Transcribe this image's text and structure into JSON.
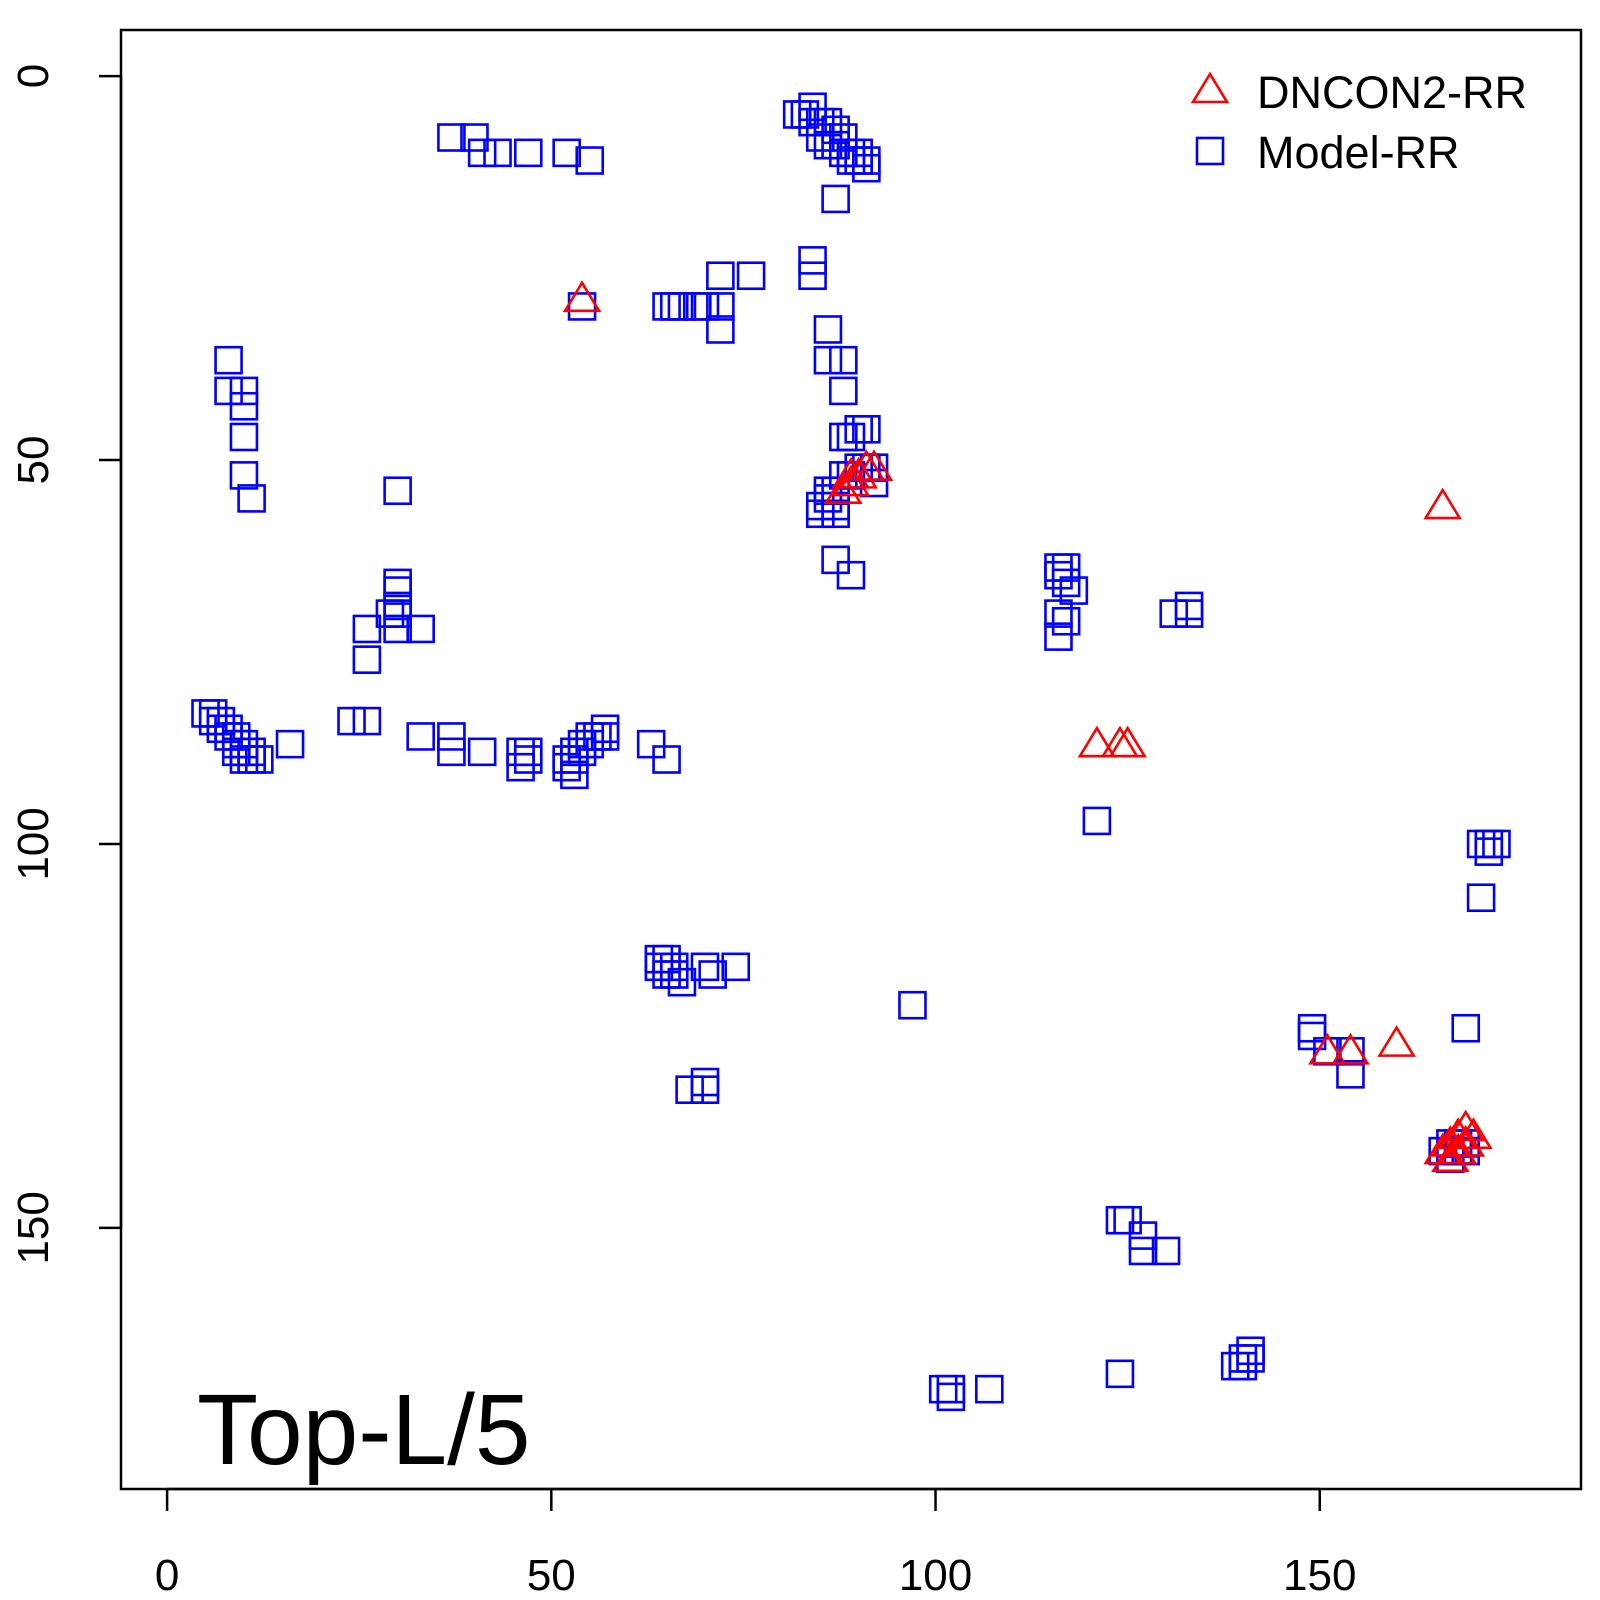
{
  "chart_data": {
    "type": "scatter",
    "title": "",
    "xlabel": "",
    "ylabel": "",
    "xlim": [
      -6,
      184
    ],
    "ylim": [
      184,
      -6
    ],
    "y_inverted": true,
    "x_ticks": [
      0,
      50,
      100,
      150
    ],
    "y_ticks": [
      0,
      50,
      100,
      150
    ],
    "x_tick_labels": [
      "0",
      "50",
      "100",
      "150"
    ],
    "y_tick_labels": [
      "0",
      "50",
      "100",
      "150"
    ],
    "grid": false,
    "legend_position": "top-right",
    "annotation": "Top-L/5",
    "series": [
      {
        "name": "DNCON2-RR",
        "marker": "triangle",
        "color": "#ff0000",
        "points": [
          [
            54,
            29
          ],
          [
            88,
            54
          ],
          [
            89,
            53
          ],
          [
            90,
            52
          ],
          [
            91,
            51
          ],
          [
            92,
            51
          ],
          [
            89,
            52
          ],
          [
            166,
            56
          ],
          [
            121,
            87
          ],
          [
            124,
            87
          ],
          [
            125,
            87
          ],
          [
            151,
            127
          ],
          [
            154,
            127
          ],
          [
            160,
            126
          ],
          [
            166,
            140
          ],
          [
            167,
            139
          ],
          [
            167,
            141
          ],
          [
            168,
            138
          ],
          [
            168,
            140
          ],
          [
            169,
            137
          ],
          [
            169,
            139
          ],
          [
            170,
            138
          ]
        ]
      },
      {
        "name": "Model-RR",
        "marker": "square",
        "color": "#0000ff",
        "points": [
          [
            37,
            8
          ],
          [
            40,
            8
          ],
          [
            41,
            10
          ],
          [
            43,
            10
          ],
          [
            47,
            10
          ],
          [
            52,
            10
          ],
          [
            55,
            11
          ],
          [
            82,
            5
          ],
          [
            83,
            5
          ],
          [
            84,
            4
          ],
          [
            84,
            6
          ],
          [
            85,
            6
          ],
          [
            85,
            8
          ],
          [
            86,
            6
          ],
          [
            86,
            9
          ],
          [
            87,
            7
          ],
          [
            87,
            9
          ],
          [
            88,
            8
          ],
          [
            88,
            10
          ],
          [
            89,
            10
          ],
          [
            89,
            11
          ],
          [
            90,
            10
          ],
          [
            90,
            11
          ],
          [
            91,
            11
          ],
          [
            91,
            12
          ],
          [
            87,
            16
          ],
          [
            84,
            24
          ],
          [
            84,
            26
          ],
          [
            72,
            26
          ],
          [
            76,
            26
          ],
          [
            54,
            30
          ],
          [
            65,
            30
          ],
          [
            66,
            30
          ],
          [
            67,
            30
          ],
          [
            69,
            30
          ],
          [
            70,
            30
          ],
          [
            72,
            30
          ],
          [
            72,
            33
          ],
          [
            86,
            33
          ],
          [
            86,
            37
          ],
          [
            88,
            37
          ],
          [
            88,
            41
          ],
          [
            88,
            47
          ],
          [
            89,
            47
          ],
          [
            90,
            46
          ],
          [
            91,
            46
          ],
          [
            88,
            52
          ],
          [
            89,
            52
          ],
          [
            90,
            51
          ],
          [
            91,
            51
          ],
          [
            92,
            51
          ],
          [
            92,
            53
          ],
          [
            86,
            54
          ],
          [
            86,
            55
          ],
          [
            87,
            54
          ],
          [
            87,
            56
          ],
          [
            85,
            56
          ],
          [
            85,
            57
          ],
          [
            87,
            57
          ],
          [
            87,
            63
          ],
          [
            89,
            65
          ],
          [
            8,
            37
          ],
          [
            8,
            41
          ],
          [
            10,
            41
          ],
          [
            10,
            43
          ],
          [
            10,
            47
          ],
          [
            10,
            52
          ],
          [
            11,
            55
          ],
          [
            30,
            54
          ],
          [
            30,
            66
          ],
          [
            30,
            67
          ],
          [
            30,
            69
          ],
          [
            30,
            70
          ],
          [
            29,
            70
          ],
          [
            26,
            72
          ],
          [
            30,
            72
          ],
          [
            33,
            72
          ],
          [
            26,
            76
          ],
          [
            5,
            83
          ],
          [
            6,
            83
          ],
          [
            6,
            84
          ],
          [
            7,
            84
          ],
          [
            7,
            85
          ],
          [
            8,
            85
          ],
          [
            8,
            86
          ],
          [
            9,
            86
          ],
          [
            9,
            87
          ],
          [
            9,
            88
          ],
          [
            10,
            87
          ],
          [
            10,
            88
          ],
          [
            10,
            89
          ],
          [
            11,
            88
          ],
          [
            11,
            89
          ],
          [
            12,
            89
          ],
          [
            16,
            87
          ],
          [
            24,
            84
          ],
          [
            26,
            84
          ],
          [
            33,
            86
          ],
          [
            37,
            86
          ],
          [
            37,
            88
          ],
          [
            41,
            88
          ],
          [
            46,
            90
          ],
          [
            46,
            88
          ],
          [
            47,
            88
          ],
          [
            47,
            89
          ],
          [
            52,
            89
          ],
          [
            52,
            90
          ],
          [
            53,
            88
          ],
          [
            53,
            89
          ],
          [
            53,
            91
          ],
          [
            54,
            87
          ],
          [
            54,
            88
          ],
          [
            55,
            86
          ],
          [
            55,
            87
          ],
          [
            56,
            86
          ],
          [
            57,
            85
          ],
          [
            57,
            86
          ],
          [
            63,
            87
          ],
          [
            65,
            89
          ],
          [
            116,
            64
          ],
          [
            116,
            65
          ],
          [
            117,
            64
          ],
          [
            117,
            66
          ],
          [
            118,
            67
          ],
          [
            116,
            70
          ],
          [
            117,
            71
          ],
          [
            116,
            73
          ],
          [
            131,
            70
          ],
          [
            133,
            69
          ],
          [
            133,
            70
          ],
          [
            121,
            97
          ],
          [
            171,
            100
          ],
          [
            172,
            100
          ],
          [
            172,
            101
          ],
          [
            173,
            100
          ],
          [
            171,
            107
          ],
          [
            169,
            124
          ],
          [
            64,
            115
          ],
          [
            64,
            116
          ],
          [
            65,
            115
          ],
          [
            65,
            117
          ],
          [
            66,
            116
          ],
          [
            66,
            117
          ],
          [
            67,
            118
          ],
          [
            70,
            116
          ],
          [
            71,
            117
          ],
          [
            74,
            116
          ],
          [
            97,
            121
          ],
          [
            68,
            132
          ],
          [
            70,
            131
          ],
          [
            70,
            132
          ],
          [
            149,
            124
          ],
          [
            149,
            125
          ],
          [
            151,
            127
          ],
          [
            154,
            127
          ],
          [
            154,
            130
          ],
          [
            124,
            149
          ],
          [
            125,
            149
          ],
          [
            127,
            151
          ],
          [
            127,
            153
          ],
          [
            130,
            153
          ],
          [
            124,
            169
          ],
          [
            101,
            171
          ],
          [
            102,
            171
          ],
          [
            102,
            172
          ],
          [
            107,
            171
          ],
          [
            139,
            168
          ],
          [
            140,
            168
          ],
          [
            140,
            167
          ],
          [
            141,
            166
          ],
          [
            141,
            167
          ],
          [
            166,
            140
          ],
          [
            167,
            139
          ],
          [
            167,
            141
          ],
          [
            168,
            139
          ],
          [
            168,
            140
          ],
          [
            169,
            139
          ],
          [
            169,
            140
          ]
        ]
      }
    ]
  }
}
